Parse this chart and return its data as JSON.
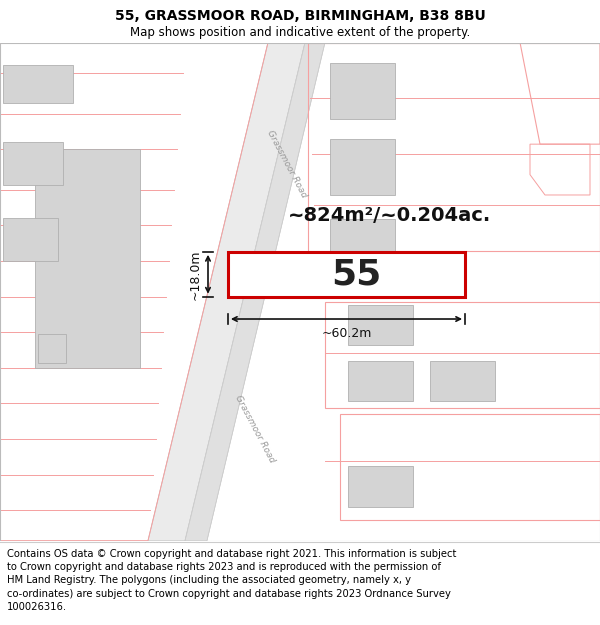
{
  "title_line1": "55, GRASSMOOR ROAD, BIRMINGHAM, B38 8BU",
  "title_line2": "Map shows position and indicative extent of the property.",
  "footer_text": "Contains OS data © Crown copyright and database right 2021. This information is subject to Crown copyright and database rights 2023 and is reproduced with the permission of HM Land Registry. The polygons (including the associated geometry, namely x, y co-ordinates) are subject to Crown copyright and database rights 2023 Ordnance Survey 100026316.",
  "area_label": "~824m²/~0.204ac.",
  "width_label": "~60.2m",
  "height_label": "~18.0m",
  "property_number": "55",
  "road_label_upper": "Grassmoor Road",
  "road_label_lower": "Grassmoor Road",
  "bg_color": "#ffffff",
  "map_bg": "#ffffff",
  "plot_line_color": "#cc0000",
  "plot_line_light": "#f5a0a0",
  "dim_line_color": "#000000",
  "road_fill": "#e8e8e8",
  "building_fill": "#d4d4d4",
  "building_edge": "#b0b0b0",
  "title_fontsize": 10,
  "footer_fontsize": 7.2
}
